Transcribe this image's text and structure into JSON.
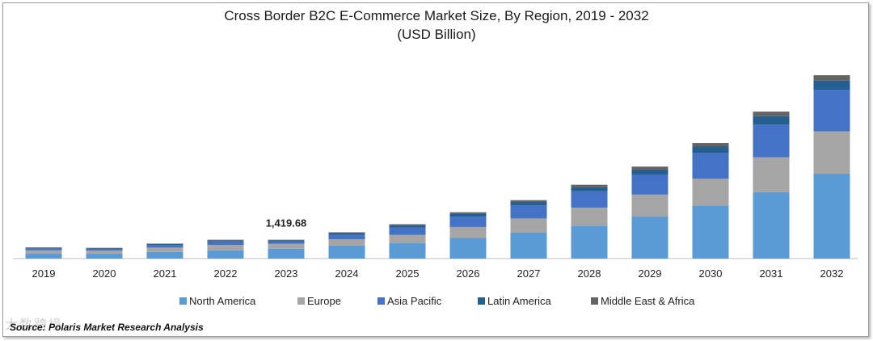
{
  "chart_data": {
    "type": "bar",
    "stacked": true,
    "title": "Cross Border B2C E-Commerce Market Size, By Region, 2019 - 2032",
    "subtitle": "(USD Billion)",
    "categories": [
      "2019",
      "2020",
      "2021",
      "2022",
      "2023",
      "2024",
      "2025",
      "2026",
      "2027",
      "2028",
      "2029",
      "2030",
      "2031",
      "2032"
    ],
    "series": [
      {
        "name": "North America",
        "color": "#5b9bd5",
        "values": [
          370,
          360,
          500,
          620,
          750,
          980,
          1180,
          1550,
          1950,
          2480,
          3170,
          4000,
          5010,
          6390
        ]
      },
      {
        "name": "Europe",
        "color": "#a5a5a5",
        "values": [
          250,
          240,
          330,
          410,
          360,
          480,
          600,
          830,
          1070,
          1360,
          1650,
          2020,
          2620,
          3200
        ]
      },
      {
        "name": "Asia Pacific",
        "color": "#4472c4",
        "values": [
          150,
          140,
          200,
          260,
          200,
          330,
          560,
          770,
          980,
          1230,
          1510,
          1930,
          2470,
          3130
        ]
      },
      {
        "name": "Latin America",
        "color": "#255e91",
        "values": [
          50,
          50,
          70,
          90,
          70,
          130,
          170,
          250,
          260,
          310,
          370,
          480,
          630,
          680
        ]
      },
      {
        "name": "Middle East & Africa",
        "color": "#636363",
        "values": [
          20,
          20,
          30,
          40,
          40,
          60,
          80,
          90,
          140,
          180,
          230,
          270,
          340,
          410
        ]
      }
    ],
    "annotations": [
      {
        "category": "2023",
        "text": "1,419.68"
      }
    ],
    "ylim": [
      0,
      14000
    ],
    "legend_position": "bottom",
    "grid": false
  },
  "source_text": "Source: Polaris Market Research Analysis",
  "watermark_text": "大数跨境"
}
